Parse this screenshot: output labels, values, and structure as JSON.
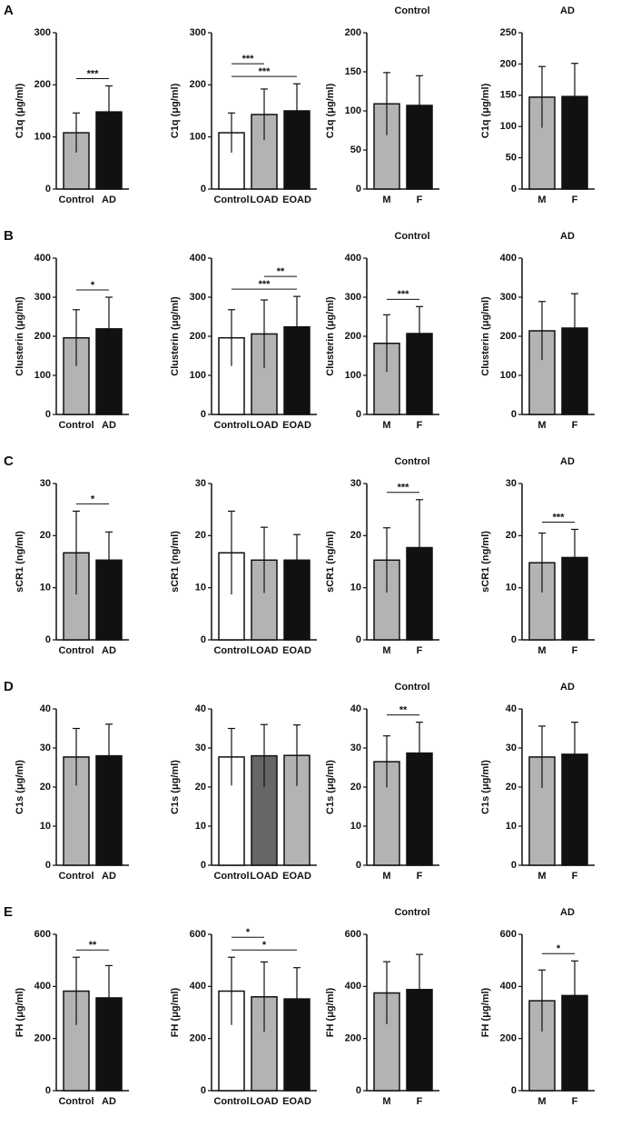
{
  "panels": [
    "A",
    "B",
    "C",
    "D",
    "E"
  ],
  "chart_data": [
    {
      "type": "bar",
      "y_label": "C1q (μg/ml)",
      "categories": [
        "Control",
        "AD"
      ],
      "values": [
        108,
        148
      ],
      "errors": [
        38,
        50
      ],
      "colors": [
        "#b3b3b3",
        "#111111"
      ],
      "ylim": [
        0,
        300
      ],
      "yticks": [
        0,
        100,
        200,
        300
      ],
      "annotations": [
        {
          "text": "***",
          "between": [
            "Control",
            "AD"
          ]
        }
      ]
    },
    {
      "type": "bar",
      "y_label": "C1q (μg/ml)",
      "categories": [
        "Control",
        "LOAD",
        "EOAD"
      ],
      "values": [
        108,
        143,
        150
      ],
      "errors": [
        38,
        49,
        52
      ],
      "colors": [
        "#ffffff",
        "#b3b3b3",
        "#111111"
      ],
      "ylim": [
        0,
        300
      ],
      "yticks": [
        0,
        100,
        200,
        300
      ],
      "annotations": [
        {
          "text": "***",
          "between": [
            "Control",
            "LOAD"
          ]
        },
        {
          "text": "***",
          "between": [
            "Control",
            "EOAD"
          ]
        }
      ]
    },
    {
      "type": "bar",
      "title": "Control",
      "y_label": "C1q (μg/ml)",
      "categories": [
        "M",
        "F"
      ],
      "values": [
        109,
        107
      ],
      "errors": [
        40,
        38
      ],
      "colors": [
        "#b3b3b3",
        "#111111"
      ],
      "ylim": [
        0,
        200
      ],
      "yticks": [
        0,
        50,
        100,
        150,
        200
      ],
      "annotations": []
    },
    {
      "type": "bar",
      "title": "AD",
      "y_label": "C1q (μg/ml)",
      "categories": [
        "M",
        "F"
      ],
      "values": [
        147,
        148
      ],
      "errors": [
        49,
        53
      ],
      "colors": [
        "#b3b3b3",
        "#111111"
      ],
      "ylim": [
        0,
        250
      ],
      "yticks": [
        0,
        50,
        100,
        150,
        200,
        250
      ],
      "annotations": []
    },
    {
      "type": "bar",
      "y_label": "Clusterin (μg/ml)",
      "categories": [
        "Control",
        "AD"
      ],
      "values": [
        196,
        219
      ],
      "errors": [
        72,
        81
      ],
      "colors": [
        "#b3b3b3",
        "#111111"
      ],
      "ylim": [
        0,
        400
      ],
      "yticks": [
        0,
        100,
        200,
        300,
        400
      ],
      "annotations": [
        {
          "text": "*",
          "between": [
            "Control",
            "AD"
          ]
        }
      ]
    },
    {
      "type": "bar",
      "y_label": "Clusterin (μg/ml)",
      "categories": [
        "Control",
        "LOAD",
        "EOAD"
      ],
      "values": [
        196,
        206,
        224
      ],
      "errors": [
        72,
        87,
        78
      ],
      "colors": [
        "#ffffff",
        "#b3b3b3",
        "#111111"
      ],
      "ylim": [
        0,
        400
      ],
      "yticks": [
        0,
        100,
        200,
        300,
        400
      ],
      "annotations": [
        {
          "text": "***",
          "between": [
            "Control",
            "EOAD"
          ]
        },
        {
          "text": "**",
          "between": [
            "LOAD",
            "EOAD"
          ]
        }
      ]
    },
    {
      "type": "bar",
      "title": "Control",
      "y_label": "Clusterin (μg/ml)",
      "categories": [
        "M",
        "F"
      ],
      "values": [
        182,
        207
      ],
      "errors": [
        73,
        69
      ],
      "colors": [
        "#b3b3b3",
        "#111111"
      ],
      "ylim": [
        0,
        400
      ],
      "yticks": [
        0,
        100,
        200,
        300,
        400
      ],
      "annotations": [
        {
          "text": "***",
          "between": [
            "M",
            "F"
          ]
        }
      ]
    },
    {
      "type": "bar",
      "title": "AD",
      "y_label": "Clusterin (μg/ml)",
      "categories": [
        "M",
        "F"
      ],
      "values": [
        214,
        221
      ],
      "errors": [
        75,
        88
      ],
      "colors": [
        "#b3b3b3",
        "#111111"
      ],
      "ylim": [
        0,
        400
      ],
      "yticks": [
        0,
        100,
        200,
        300,
        400
      ],
      "annotations": []
    },
    {
      "type": "bar",
      "y_label": "sCR1 (ng/ml)",
      "categories": [
        "Control",
        "AD"
      ],
      "values": [
        16.7,
        15.3
      ],
      "errors": [
        8,
        5.4
      ],
      "colors": [
        "#b3b3b3",
        "#111111"
      ],
      "ylim": [
        0,
        30
      ],
      "yticks": [
        0,
        10,
        20,
        30
      ],
      "annotations": [
        {
          "text": "*",
          "between": [
            "Control",
            "AD"
          ]
        }
      ]
    },
    {
      "type": "bar",
      "y_label": "sCR1 (ng/ml)",
      "categories": [
        "Control",
        "LOAD",
        "EOAD"
      ],
      "values": [
        16.7,
        15.3,
        15.3
      ],
      "errors": [
        8,
        6.3,
        4.9
      ],
      "colors": [
        "#ffffff",
        "#b3b3b3",
        "#111111"
      ],
      "ylim": [
        0,
        30
      ],
      "yticks": [
        0,
        10,
        20,
        30
      ],
      "annotations": []
    },
    {
      "type": "bar",
      "title": "Control",
      "y_label": "sCR1 (ng/ml)",
      "categories": [
        "M",
        "F"
      ],
      "values": [
        15.3,
        17.7
      ],
      "errors": [
        6.2,
        9.2
      ],
      "colors": [
        "#b3b3b3",
        "#111111"
      ],
      "ylim": [
        0,
        30
      ],
      "yticks": [
        0,
        10,
        20,
        30
      ],
      "annotations": [
        {
          "text": "***",
          "between": [
            "M",
            "F"
          ]
        }
      ]
    },
    {
      "type": "bar",
      "title": "AD",
      "y_label": "sCR1 (ng/ml)",
      "categories": [
        "M",
        "F"
      ],
      "values": [
        14.8,
        15.8
      ],
      "errors": [
        5.7,
        5.4
      ],
      "colors": [
        "#b3b3b3",
        "#111111"
      ],
      "ylim": [
        0,
        30
      ],
      "yticks": [
        0,
        10,
        20,
        30
      ],
      "annotations": [
        {
          "text": "***",
          "between": [
            "M",
            "F"
          ]
        }
      ]
    },
    {
      "type": "bar",
      "y_label": "C1s (μg/ml)",
      "categories": [
        "Control",
        "AD"
      ],
      "values": [
        27.7,
        28
      ],
      "errors": [
        7.3,
        8.1
      ],
      "colors": [
        "#b3b3b3",
        "#111111"
      ],
      "ylim": [
        0,
        40
      ],
      "yticks": [
        0,
        10,
        20,
        30,
        40
      ],
      "annotations": []
    },
    {
      "type": "bar",
      "y_label": "C1s (μg/ml)",
      "categories": [
        "Control",
        "LOAD",
        "EOAD"
      ],
      "values": [
        27.7,
        28,
        28.1
      ],
      "errors": [
        7.3,
        8,
        7.8
      ],
      "colors": [
        "#ffffff",
        "#666666",
        "#b3b3b3"
      ],
      "ylim": [
        0,
        40
      ],
      "yticks": [
        0,
        10,
        20,
        30,
        40
      ],
      "annotations": []
    },
    {
      "type": "bar",
      "title": "Control",
      "y_label": "C1s (μg/ml)",
      "categories": [
        "M",
        "F"
      ],
      "values": [
        26.5,
        28.7
      ],
      "errors": [
        6.6,
        7.9
      ],
      "colors": [
        "#b3b3b3",
        "#111111"
      ],
      "ylim": [
        0,
        40
      ],
      "yticks": [
        0,
        10,
        20,
        30,
        40
      ],
      "annotations": [
        {
          "text": "**",
          "between": [
            "M",
            "F"
          ]
        }
      ]
    },
    {
      "type": "bar",
      "title": "AD",
      "y_label": "C1s (μg/ml)",
      "categories": [
        "M",
        "F"
      ],
      "values": [
        27.7,
        28.4
      ],
      "errors": [
        7.9,
        8.2
      ],
      "colors": [
        "#b3b3b3",
        "#111111"
      ],
      "ylim": [
        0,
        40
      ],
      "yticks": [
        0,
        10,
        20,
        30,
        40
      ],
      "annotations": []
    },
    {
      "type": "bar",
      "y_label": "FH (μg/ml)",
      "categories": [
        "Control",
        "AD"
      ],
      "values": [
        382,
        356
      ],
      "errors": [
        130,
        124
      ],
      "colors": [
        "#b3b3b3",
        "#111111"
      ],
      "ylim": [
        0,
        600
      ],
      "yticks": [
        0,
        200,
        400,
        600
      ],
      "annotations": [
        {
          "text": "**",
          "between": [
            "Control",
            "AD"
          ]
        }
      ]
    },
    {
      "type": "bar",
      "y_label": "FH (μg/ml)",
      "categories": [
        "Control",
        "LOAD",
        "EOAD"
      ],
      "values": [
        382,
        360,
        352
      ],
      "errors": [
        130,
        134,
        120
      ],
      "colors": [
        "#ffffff",
        "#b3b3b3",
        "#111111"
      ],
      "ylim": [
        0,
        600
      ],
      "yticks": [
        0,
        200,
        400,
        600
      ],
      "annotations": [
        {
          "text": "*",
          "between": [
            "Control",
            "LOAD"
          ]
        },
        {
          "text": "*",
          "between": [
            "Control",
            "EOAD"
          ]
        }
      ]
    },
    {
      "type": "bar",
      "title": "Control",
      "y_label": "FH (μg/ml)",
      "categories": [
        "M",
        "F"
      ],
      "values": [
        375,
        388
      ],
      "errors": [
        120,
        135
      ],
      "colors": [
        "#b3b3b3",
        "#111111"
      ],
      "ylim": [
        0,
        600
      ],
      "yticks": [
        0,
        200,
        400,
        600
      ],
      "annotations": []
    },
    {
      "type": "bar",
      "title": "AD",
      "y_label": "FH (μg/ml)",
      "categories": [
        "M",
        "F"
      ],
      "values": [
        345,
        365
      ],
      "errors": [
        118,
        133
      ],
      "colors": [
        "#b3b3b3",
        "#111111"
      ],
      "ylim": [
        0,
        600
      ],
      "yticks": [
        0,
        200,
        400,
        600
      ],
      "annotations": [
        {
          "text": "*",
          "between": [
            "M",
            "F"
          ]
        }
      ]
    }
  ]
}
